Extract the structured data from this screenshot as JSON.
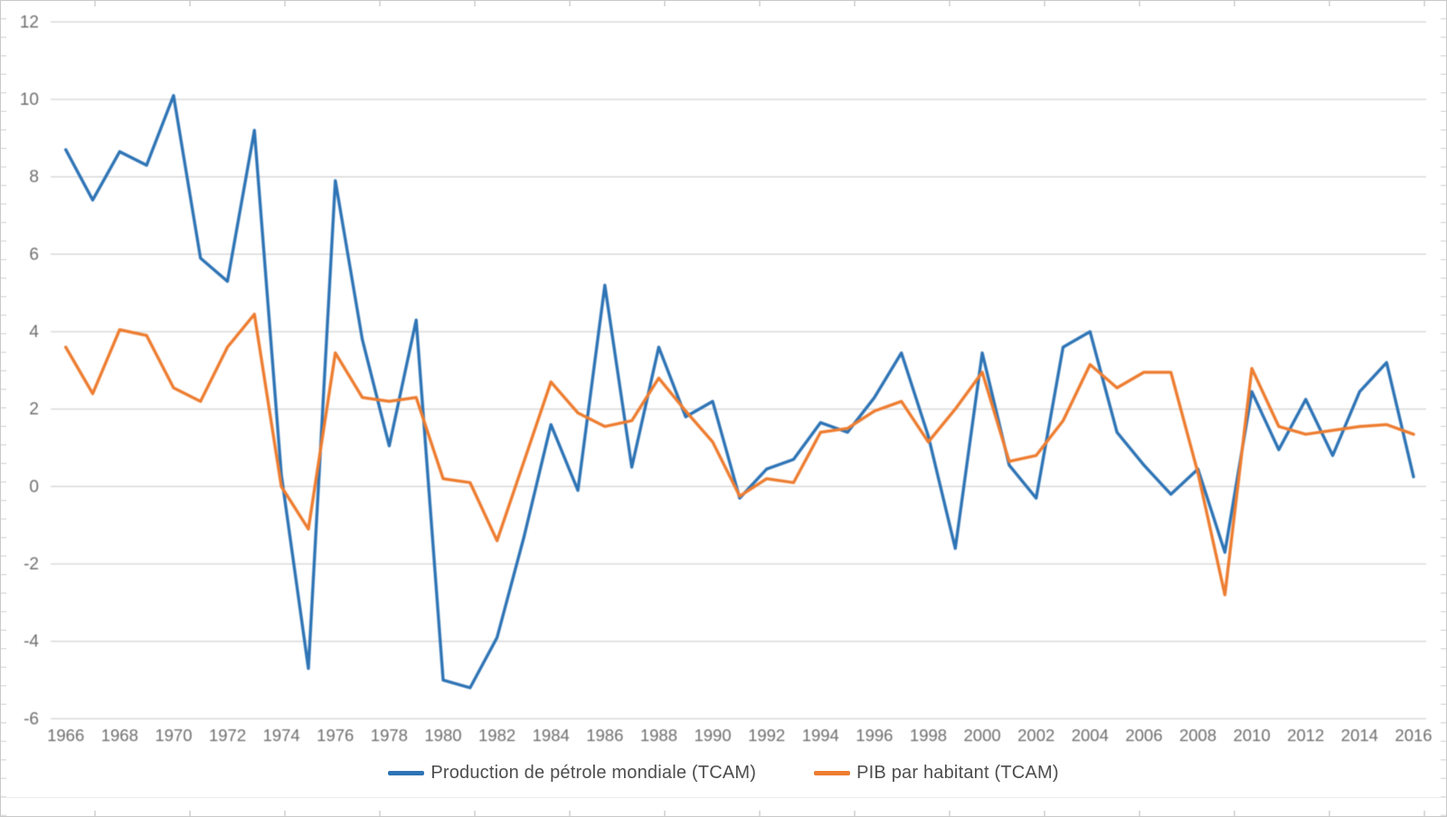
{
  "chart_data": {
    "type": "line",
    "title": "",
    "x": [
      1966,
      1967,
      1968,
      1969,
      1970,
      1971,
      1972,
      1973,
      1974,
      1975,
      1976,
      1977,
      1978,
      1979,
      1980,
      1981,
      1982,
      1983,
      1984,
      1985,
      1986,
      1987,
      1988,
      1989,
      1990,
      1991,
      1992,
      1993,
      1994,
      1995,
      1996,
      1997,
      1998,
      1999,
      2000,
      2001,
      2002,
      2003,
      2004,
      2005,
      2006,
      2007,
      2008,
      2009,
      2010,
      2011,
      2012,
      2013,
      2014,
      2015,
      2016
    ],
    "x_tick_labels": [
      "1966",
      "1968",
      "1970",
      "1972",
      "1974",
      "1976",
      "1978",
      "1980",
      "1982",
      "1984",
      "1986",
      "1988",
      "1990",
      "1992",
      "1994",
      "1996",
      "1998",
      "2000",
      "2002",
      "2004",
      "2006",
      "2008",
      "2010",
      "2012",
      "2014",
      "2016"
    ],
    "y_ticks": [
      12,
      10,
      8,
      6,
      4,
      2,
      0,
      -2,
      -4,
      -6
    ],
    "ylim": [
      -6,
      12
    ],
    "grid": "horizontal",
    "legend_position": "bottom-center",
    "series": [
      {
        "name": "Production de pétrole mondiale (TCAM)",
        "color": "#2e74b5",
        "values": [
          8.7,
          7.4,
          8.65,
          8.3,
          10.1,
          5.9,
          5.3,
          9.2,
          0.3,
          -4.7,
          7.9,
          3.8,
          1.05,
          4.3,
          -5.0,
          -5.2,
          -3.9,
          -1.3,
          1.6,
          -0.1,
          5.2,
          0.5,
          3.6,
          1.8,
          2.2,
          -0.3,
          0.45,
          0.7,
          1.65,
          1.4,
          2.3,
          3.45,
          1.3,
          -1.6,
          3.45,
          0.55,
          -0.3,
          3.6,
          4.0,
          1.4,
          0.55,
          -0.2,
          0.45,
          -1.7,
          2.45,
          0.95,
          2.25,
          0.8,
          2.45,
          3.2,
          0.25
        ]
      },
      {
        "name": "PIB par habitant (TCAM)",
        "color": "#ed7d31",
        "values": [
          3.6,
          2.4,
          4.05,
          3.9,
          2.55,
          2.2,
          3.6,
          4.45,
          0.0,
          -1.1,
          3.45,
          2.3,
          2.2,
          2.3,
          0.2,
          0.1,
          -1.4,
          0.65,
          2.7,
          1.9,
          1.55,
          1.7,
          2.8,
          1.95,
          1.15,
          -0.25,
          0.2,
          0.1,
          1.4,
          1.5,
          1.95,
          2.2,
          1.15,
          2.0,
          2.95,
          0.65,
          0.8,
          1.7,
          3.15,
          2.55,
          2.95,
          2.95,
          0.35,
          -2.8,
          3.05,
          1.55,
          1.35,
          1.45,
          1.55,
          1.6,
          1.35
        ]
      }
    ],
    "colors": {
      "gridline": "#d9d9d9",
      "tick_label": "#6e6e6e",
      "legend_text": "#4d4d4d"
    }
  }
}
